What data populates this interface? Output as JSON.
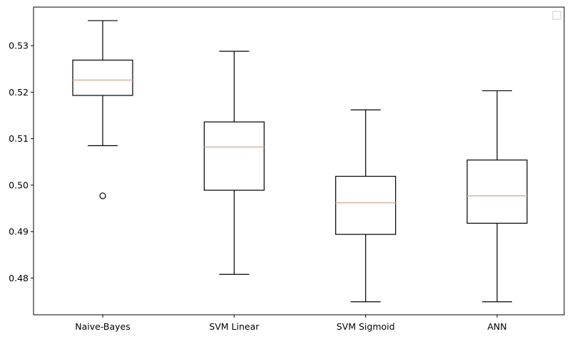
{
  "chart_data": {
    "type": "box",
    "categories": [
      "Naive-Bayes",
      "SVM Linear",
      "SVM Sigmoid",
      "ANN"
    ],
    "boxes": [
      {
        "whislo": 0.5085,
        "q1": 0.5193,
        "med": 0.5226,
        "q3": 0.5269,
        "whishi": 0.5354,
        "fliers": [
          0.4977
        ]
      },
      {
        "whislo": 0.4808,
        "q1": 0.4989,
        "med": 0.5082,
        "q3": 0.5136,
        "whishi": 0.5288,
        "fliers": []
      },
      {
        "whislo": 0.4749,
        "q1": 0.4894,
        "med": 0.4962,
        "q3": 0.5019,
        "whishi": 0.5162,
        "fliers": []
      },
      {
        "whislo": 0.4749,
        "q1": 0.4918,
        "med": 0.4977,
        "q3": 0.5054,
        "whishi": 0.5203,
        "fliers": []
      }
    ],
    "yticks": [
      0.48,
      0.49,
      0.5,
      0.51,
      0.52,
      0.53
    ],
    "ytick_labels": [
      "0.48",
      "0.49",
      "0.50",
      "0.51",
      "0.52",
      "0.53"
    ],
    "ylim": [
      0.4721,
      0.5383
    ],
    "title": "",
    "xlabel": "",
    "ylabel": "",
    "legend": {
      "placement": "top-right",
      "entries": []
    },
    "grid": false,
    "colors": {
      "box": "#000000",
      "median": "#d8b8a8",
      "frame": "#000000"
    }
  }
}
